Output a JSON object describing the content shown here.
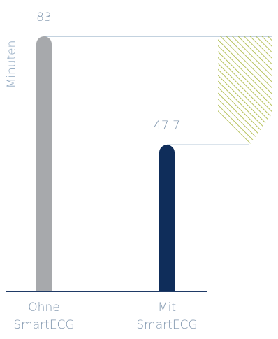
{
  "chart_data": {
    "type": "bar",
    "ylabel": "Minuten",
    "ylim": [
      0,
      83
    ],
    "grid": false,
    "categories": [
      "Ohne|SmartECG",
      "Mit|SmartECG"
    ],
    "values": [
      83,
      47.7
    ],
    "value_labels": [
      "83",
      "47.7"
    ],
    "annotation": "hatched-difference-band"
  },
  "colors": {
    "bar_without": "#a7a9ac",
    "bar_with": "#0f2d5a",
    "axis": "#1f3a66",
    "text": "#7f95ad",
    "ylabel": "#8ea6bf",
    "leader": "#9fb6cc",
    "hatch": "#a7b53a"
  }
}
